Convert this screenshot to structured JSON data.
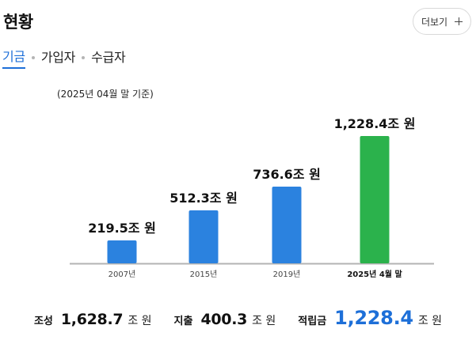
{
  "header": {
    "title": "현황",
    "more_label": "더보기"
  },
  "tabs": [
    {
      "label": "기금",
      "active": true
    },
    {
      "label": "가입자",
      "active": false
    },
    {
      "label": "수급자",
      "active": false
    }
  ],
  "date_note": "(2025년 04월 말 기준)",
  "chart_data": {
    "type": "bar",
    "categories": [
      "2007년",
      "2015년",
      "2019년",
      "2025년 4월 말"
    ],
    "values": [
      219.5,
      512.3,
      736.6,
      1228.4
    ],
    "data_labels": [
      "219.5조 원",
      "512.3조 원",
      "736.6조 원",
      "1,228.4조 원"
    ],
    "colors": [
      "#2b82df",
      "#2b82df",
      "#2b82df",
      "#2bb24c"
    ],
    "ylim": [
      0,
      1228.4
    ],
    "grid": false,
    "title": "",
    "xlabel": "",
    "ylabel": ""
  },
  "summary": [
    {
      "label": "조성",
      "value": "1,628.7",
      "unit": "조 원"
    },
    {
      "label": "지출",
      "value": "400.3",
      "unit": "조 원"
    },
    {
      "label": "적립금",
      "value": "1,228.4",
      "unit": "조 원",
      "highlight": true
    }
  ]
}
